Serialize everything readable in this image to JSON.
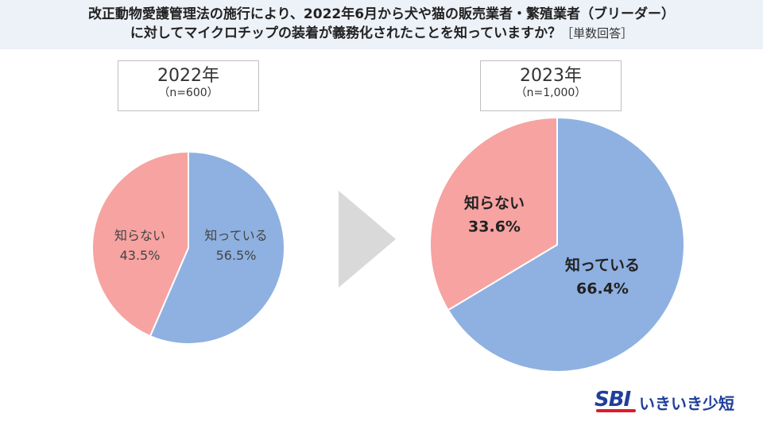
{
  "title": {
    "line1": "改正動物愛護管理法の施行により、2022年6月から犬や猫の販売業者・繁殖業者（ブリーダー）",
    "line2": "に対してマイクロチップの装着が義務化されたことを知っていますか？",
    "note": "［単数回答］"
  },
  "colors": {
    "know": "#8fb1e1",
    "dont_know": "#f6a3a1",
    "arrow": "#d9d9d9",
    "header_bg": "#edf1f8"
  },
  "chart_data": [
    {
      "type": "pie",
      "title": "2022年",
      "subtitle": "（n=600）",
      "categories": [
        "知っている",
        "知らない"
      ],
      "values": [
        56.5,
        43.5
      ],
      "value_labels": [
        "56.5%",
        "43.5%"
      ]
    },
    {
      "type": "pie",
      "title": "2023年",
      "subtitle": "（n=1,000）",
      "categories": [
        "知っている",
        "知らない"
      ],
      "values": [
        66.4,
        33.6
      ],
      "value_labels": [
        "66.4%",
        "33.6%"
      ]
    }
  ],
  "logo": {
    "mark": "SBI",
    "name": "いきいき少短"
  }
}
